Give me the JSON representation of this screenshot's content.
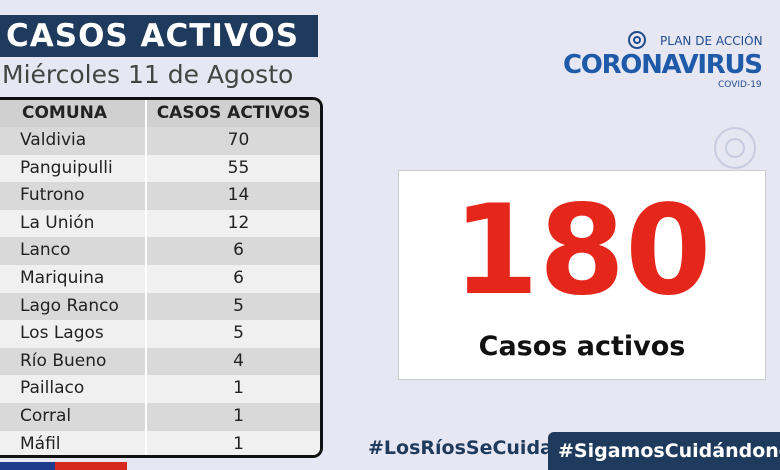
{
  "header": {
    "title": "CASOS ACTIVOS",
    "date": "Miércoles 11 de Agosto"
  },
  "logo": {
    "top": "PLAN DE ACCIÓN",
    "main": "CORONAVIRUS",
    "sub": "COVID-19"
  },
  "table": {
    "headers": [
      "COMUNA",
      "CASOS ACTIVOS"
    ],
    "rows": [
      [
        "Valdivia",
        70
      ],
      [
        "Panguipulli",
        55
      ],
      [
        "Futrono",
        14
      ],
      [
        "La Unión",
        12
      ],
      [
        "Lanco",
        6
      ],
      [
        "Mariquina",
        6
      ],
      [
        "Lago Ranco",
        5
      ],
      [
        "Los Lagos",
        5
      ],
      [
        "Río Bueno",
        4
      ],
      [
        "Paillaco",
        1
      ],
      [
        "Corral",
        1
      ],
      [
        "Máfil",
        1
      ]
    ]
  },
  "total": {
    "value": 180,
    "label": "Casos activos"
  },
  "hashtags": [
    "#LosRíosSeCuida",
    "#SigamosCuidándonos"
  ]
}
